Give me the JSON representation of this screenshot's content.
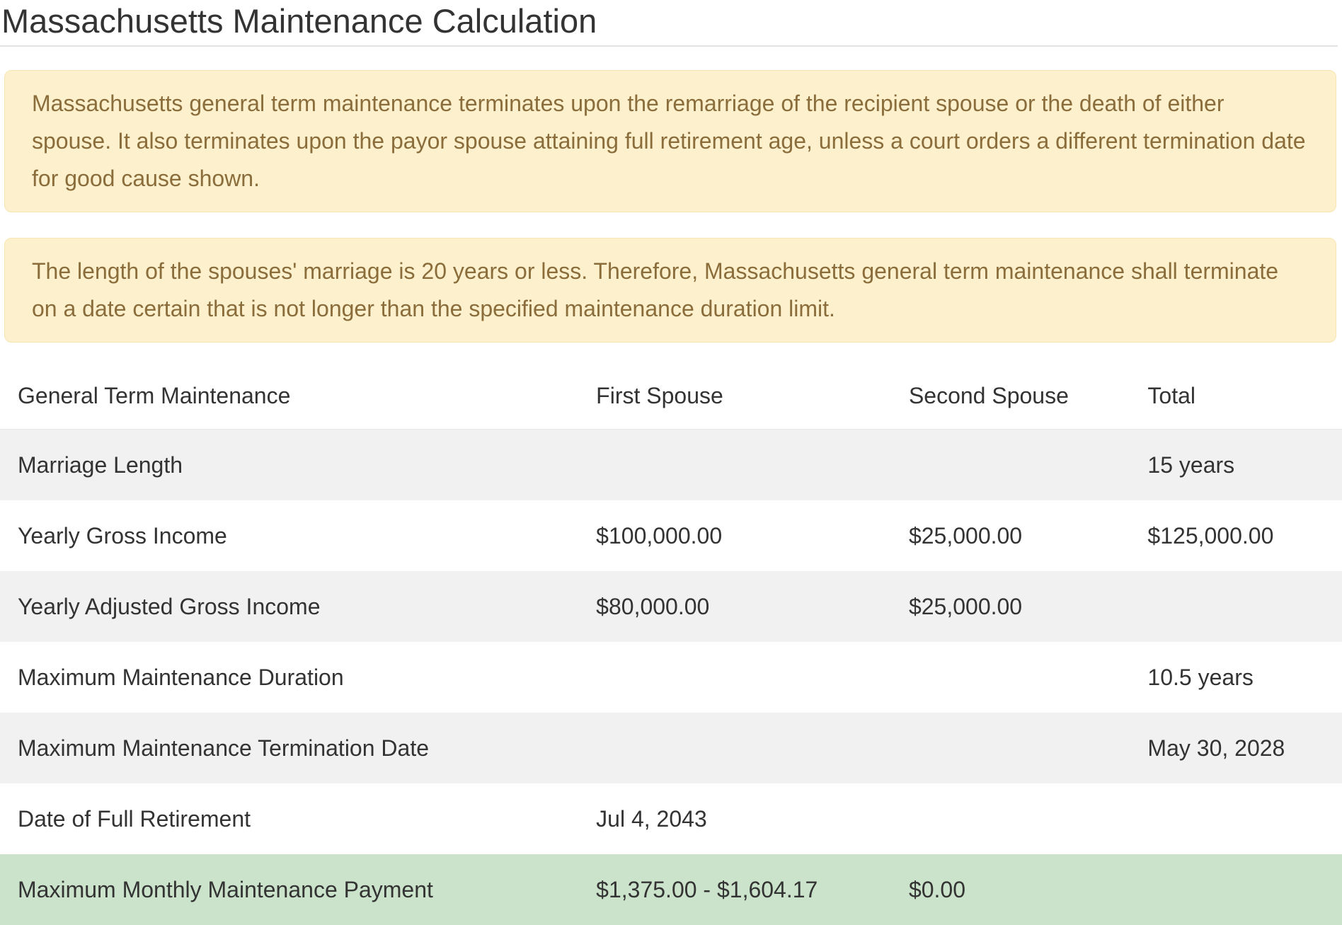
{
  "page": {
    "title": "Massachusetts Maintenance Calculation"
  },
  "colors": {
    "alert_bg": "#fcf0cd",
    "alert_text": "#8a6d3b",
    "stripe_bg": "#f1f1f1",
    "highlight_bg": "#cbe3cb",
    "text": "#333333",
    "rule": "#e2e2e2"
  },
  "alerts": [
    {
      "text": "Massachusetts general term maintenance terminates upon the remarriage of the recipient spouse or the death of either spouse. It also terminates upon the payor spouse attaining full retirement age, unless a court orders a different termination date for good cause shown."
    },
    {
      "text": "The length of the spouses' marriage is 20 years or less. Therefore, Massachusetts general term maintenance shall terminate on a date certain that is not longer than the specified maintenance duration limit."
    }
  ],
  "table": {
    "columns": [
      "General Term Maintenance",
      "First Spouse",
      "Second Spouse",
      "Total"
    ],
    "rows": [
      {
        "label": "Marriage Length",
        "first_spouse": "",
        "second_spouse": "",
        "total": "15 years",
        "highlight": false
      },
      {
        "label": "Yearly Gross Income",
        "first_spouse": "$100,000.00",
        "second_spouse": "$25,000.00",
        "total": "$125,000.00",
        "highlight": false
      },
      {
        "label": "Yearly Adjusted Gross Income",
        "first_spouse": "$80,000.00",
        "second_spouse": "$25,000.00",
        "total": "",
        "highlight": false
      },
      {
        "label": "Maximum Maintenance Duration",
        "first_spouse": "",
        "second_spouse": "",
        "total": "10.5 years",
        "highlight": false
      },
      {
        "label": "Maximum Maintenance Termination Date",
        "first_spouse": "",
        "second_spouse": "",
        "total": "May 30, 2028",
        "highlight": false
      },
      {
        "label": "Date of Full Retirement",
        "first_spouse": "Jul 4, 2043",
        "second_spouse": "",
        "total": "",
        "highlight": false
      },
      {
        "label": "Maximum Monthly Maintenance Payment",
        "first_spouse": "$1,375.00 - $1,604.17",
        "second_spouse": "$0.00",
        "total": "",
        "highlight": true
      }
    ]
  }
}
